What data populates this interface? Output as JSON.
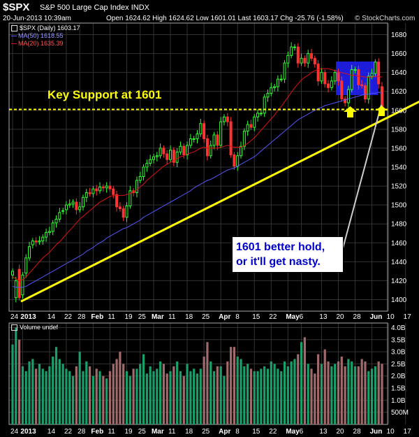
{
  "header": {
    "symbol": "$SPX",
    "name": "S&P 500 Large Cap Index",
    "exchange": "INDX",
    "datetime": "20-Jun-2013 10:39am",
    "ohlc": "Open 1624.62  High 1624.62  Low 1601.01  Last 1603.17  Chg -25.76 (-1.58%)",
    "brand": "© StockCharts.com"
  },
  "legend": {
    "price": "$SPX (Daily) 1603.17",
    "ma50": "MA(50) 1618.55",
    "ma20": "MA(20) 1635.39",
    "volume": "Volume undef"
  },
  "annotations": {
    "support_label": "Key Support at 1601",
    "callout_line1": "1601 better hold,",
    "callout_line2": "or it'll get nasty."
  },
  "colors": {
    "background": "#000000",
    "up": "#33ff33",
    "down": "#ff3333",
    "ma50": "#5555ff",
    "ma20": "#dd1111",
    "support": "#ffff00",
    "volume_up": "#1a9e6a",
    "volume_down": "#a06a6a",
    "highlight_box": "#2222ff"
  },
  "chart_data": [
    {
      "type": "candlestick",
      "title": "$SPX S&P 500 Large Cap Index INDX",
      "ylim": [
        1390,
        1690
      ],
      "yticks": [
        1400,
        1420,
        1440,
        1460,
        1480,
        1500,
        1520,
        1540,
        1560,
        1580,
        1600,
        1620,
        1640,
        1660,
        1680
      ],
      "xticks": [
        "24",
        "2013",
        "14",
        "22",
        "28",
        "Feb",
        "11",
        "19",
        "25",
        "Mar",
        "11",
        "18",
        "25",
        "Apr",
        "8",
        "15",
        "22",
        "May",
        "6",
        "13",
        "20",
        "28",
        "Jun",
        "10",
        "17"
      ],
      "grid": true,
      "support_level": 1601,
      "trendline": {
        "from": [
          0,
          1398
        ],
        "to": [
          126,
          1632
        ]
      },
      "close": [
        1430,
        1420,
        1402,
        1426,
        1444,
        1456,
        1462,
        1461,
        1462,
        1466,
        1471,
        1472,
        1481,
        1485,
        1492,
        1494,
        1500,
        1501,
        1503,
        1495,
        1498,
        1508,
        1513,
        1512,
        1517,
        1515,
        1519,
        1518,
        1520,
        1517,
        1511,
        1498,
        1496,
        1487,
        1499,
        1515,
        1513,
        1526,
        1530,
        1540,
        1544,
        1548,
        1551,
        1552,
        1560,
        1554,
        1548,
        1558,
        1545,
        1556,
        1562,
        1553,
        1563,
        1570,
        1570,
        1575,
        1586,
        1570,
        1552,
        1563,
        1574,
        1563,
        1588,
        1593,
        1588,
        1553,
        1541,
        1552,
        1562,
        1578,
        1585,
        1582,
        1593,
        1597,
        1597,
        1614,
        1618,
        1624,
        1625,
        1633,
        1633,
        1650,
        1658,
        1667,
        1667,
        1650,
        1655,
        1650,
        1660,
        1655,
        1649,
        1631,
        1640,
        1628,
        1624,
        1631,
        1640,
        1631,
        1612,
        1608,
        1622,
        1643,
        1643,
        1627,
        1626,
        1612,
        1636,
        1639,
        1651,
        1628,
        1603
      ],
      "open": [
        1426,
        1402,
        1432,
        1405,
        1428,
        1444,
        1458,
        1462,
        1461,
        1462,
        1466,
        1471,
        1472,
        1481,
        1485,
        1494,
        1495,
        1500,
        1501,
        1503,
        1495,
        1498,
        1508,
        1513,
        1512,
        1517,
        1515,
        1519,
        1518,
        1520,
        1517,
        1511,
        1498,
        1496,
        1487,
        1499,
        1515,
        1513,
        1526,
        1530,
        1540,
        1544,
        1548,
        1551,
        1552,
        1560,
        1554,
        1548,
        1558,
        1545,
        1556,
        1562,
        1553,
        1563,
        1570,
        1570,
        1575,
        1586,
        1570,
        1552,
        1563,
        1574,
        1563,
        1588,
        1593,
        1588,
        1553,
        1541,
        1552,
        1562,
        1578,
        1585,
        1582,
        1593,
        1597,
        1597,
        1614,
        1618,
        1624,
        1625,
        1633,
        1633,
        1650,
        1658,
        1667,
        1667,
        1650,
        1655,
        1650,
        1660,
        1655,
        1649,
        1631,
        1640,
        1628,
        1624,
        1631,
        1640,
        1631,
        1612,
        1608,
        1622,
        1643,
        1643,
        1627,
        1626,
        1612,
        1636,
        1639,
        1651,
        1625
      ],
      "ma50": [
        1414,
        1413,
        1413,
        1413,
        1414,
        1416,
        1418,
        1420,
        1422,
        1424,
        1426,
        1428,
        1430,
        1432,
        1434,
        1436,
        1438,
        1440,
        1442,
        1444,
        1446,
        1448,
        1451,
        1453,
        1455,
        1458,
        1460,
        1462,
        1465,
        1467,
        1469,
        1471,
        1473,
        1475,
        1476,
        1478,
        1480,
        1482,
        1484,
        1487,
        1489,
        1491,
        1493,
        1495,
        1497,
        1499,
        1501,
        1503,
        1505,
        1507,
        1509,
        1511,
        1513,
        1515,
        1518,
        1520,
        1522,
        1524,
        1526,
        1527,
        1529,
        1531,
        1533,
        1535,
        1537,
        1538,
        1539,
        1541,
        1543,
        1545,
        1547,
        1549,
        1551,
        1554,
        1557,
        1560,
        1563,
        1566,
        1569,
        1572,
        1575,
        1578,
        1581,
        1584,
        1587,
        1590,
        1592,
        1594,
        1596,
        1598,
        1600,
        1602,
        1603,
        1605,
        1606,
        1607,
        1608,
        1609,
        1610,
        1611,
        1612,
        1613,
        1614,
        1615,
        1616,
        1617,
        1617,
        1618,
        1618,
        1619,
        1618
      ],
      "ma20": [
        1424,
        1422,
        1420,
        1421,
        1424,
        1428,
        1432,
        1436,
        1440,
        1444,
        1447,
        1450,
        1454,
        1458,
        1461,
        1465,
        1469,
        1473,
        1477,
        1481,
        1485,
        1488,
        1491,
        1494,
        1497,
        1500,
        1503,
        1505,
        1507,
        1509,
        1510,
        1510,
        1510,
        1510,
        1511,
        1512,
        1514,
        1516,
        1519,
        1522,
        1526,
        1529,
        1532,
        1535,
        1538,
        1541,
        1543,
        1545,
        1547,
        1549,
        1551,
        1552,
        1554,
        1555,
        1556,
        1558,
        1560,
        1561,
        1560,
        1560,
        1560,
        1560,
        1561,
        1562,
        1563,
        1562,
        1561,
        1561,
        1561,
        1563,
        1565,
        1568,
        1571,
        1575,
        1579,
        1583,
        1587,
        1591,
        1595,
        1600,
        1604,
        1609,
        1614,
        1619,
        1624,
        1628,
        1632,
        1635,
        1637,
        1640,
        1642,
        1643,
        1644,
        1644,
        1644,
        1643,
        1642,
        1641,
        1640,
        1639,
        1638,
        1637,
        1637,
        1636,
        1636,
        1635,
        1635,
        1635,
        1636,
        1636,
        1635
      ]
    },
    {
      "type": "bar",
      "title": "Volume undef",
      "ylim": [
        0,
        4.1
      ],
      "yticks": [
        "4.0B",
        "3.5B",
        "3.0B",
        "2.5B",
        "2.0B",
        "1.5B",
        "1.0B",
        "500M"
      ],
      "values": [
        3.3,
        4.0,
        3.5,
        2.4,
        2.2,
        2.6,
        2.7,
        2.3,
        2.5,
        2.3,
        2.2,
        2.4,
        2.8,
        3.2,
        2.7,
        2.5,
        2.3,
        2.2,
        2.0,
        2.4,
        3.0,
        2.2,
        2.6,
        2.4,
        2.0,
        2.3,
        2.2,
        2.0,
        1.9,
        2.2,
        2.5,
        2.7,
        3.0,
        2.5,
        2.2,
        2.0,
        2.3,
        2.3,
        2.5,
        2.9,
        2.1,
        2.4,
        2.2,
        2.3,
        2.6,
        2.5,
        2.1,
        2.2,
        2.4,
        2.6,
        2.2,
        2.0,
        2.5,
        2.2,
        2.3,
        2.1,
        2.3,
        2.8,
        3.4,
        2.6,
        2.2,
        2.4,
        2.4,
        2.0,
        2.6,
        3.2,
        3.2,
        2.8,
        2.7,
        2.4,
        2.5,
        2.3,
        2.2,
        2.2,
        2.3,
        2.4,
        2.3,
        2.6,
        2.5,
        2.3,
        2.2,
        2.6,
        2.4,
        2.6,
        2.7,
        2.9,
        3.4,
        3.6,
        2.5,
        2.3,
        2.1,
        2.9,
        2.5,
        3.1,
        2.6,
        2.4,
        2.5,
        2.6,
        2.8,
        2.4,
        2.7,
        2.6,
        2.4,
        2.4,
        2.7,
        2.6,
        2.2,
        2.3,
        2.4,
        2.6,
        2.5
      ]
    }
  ]
}
